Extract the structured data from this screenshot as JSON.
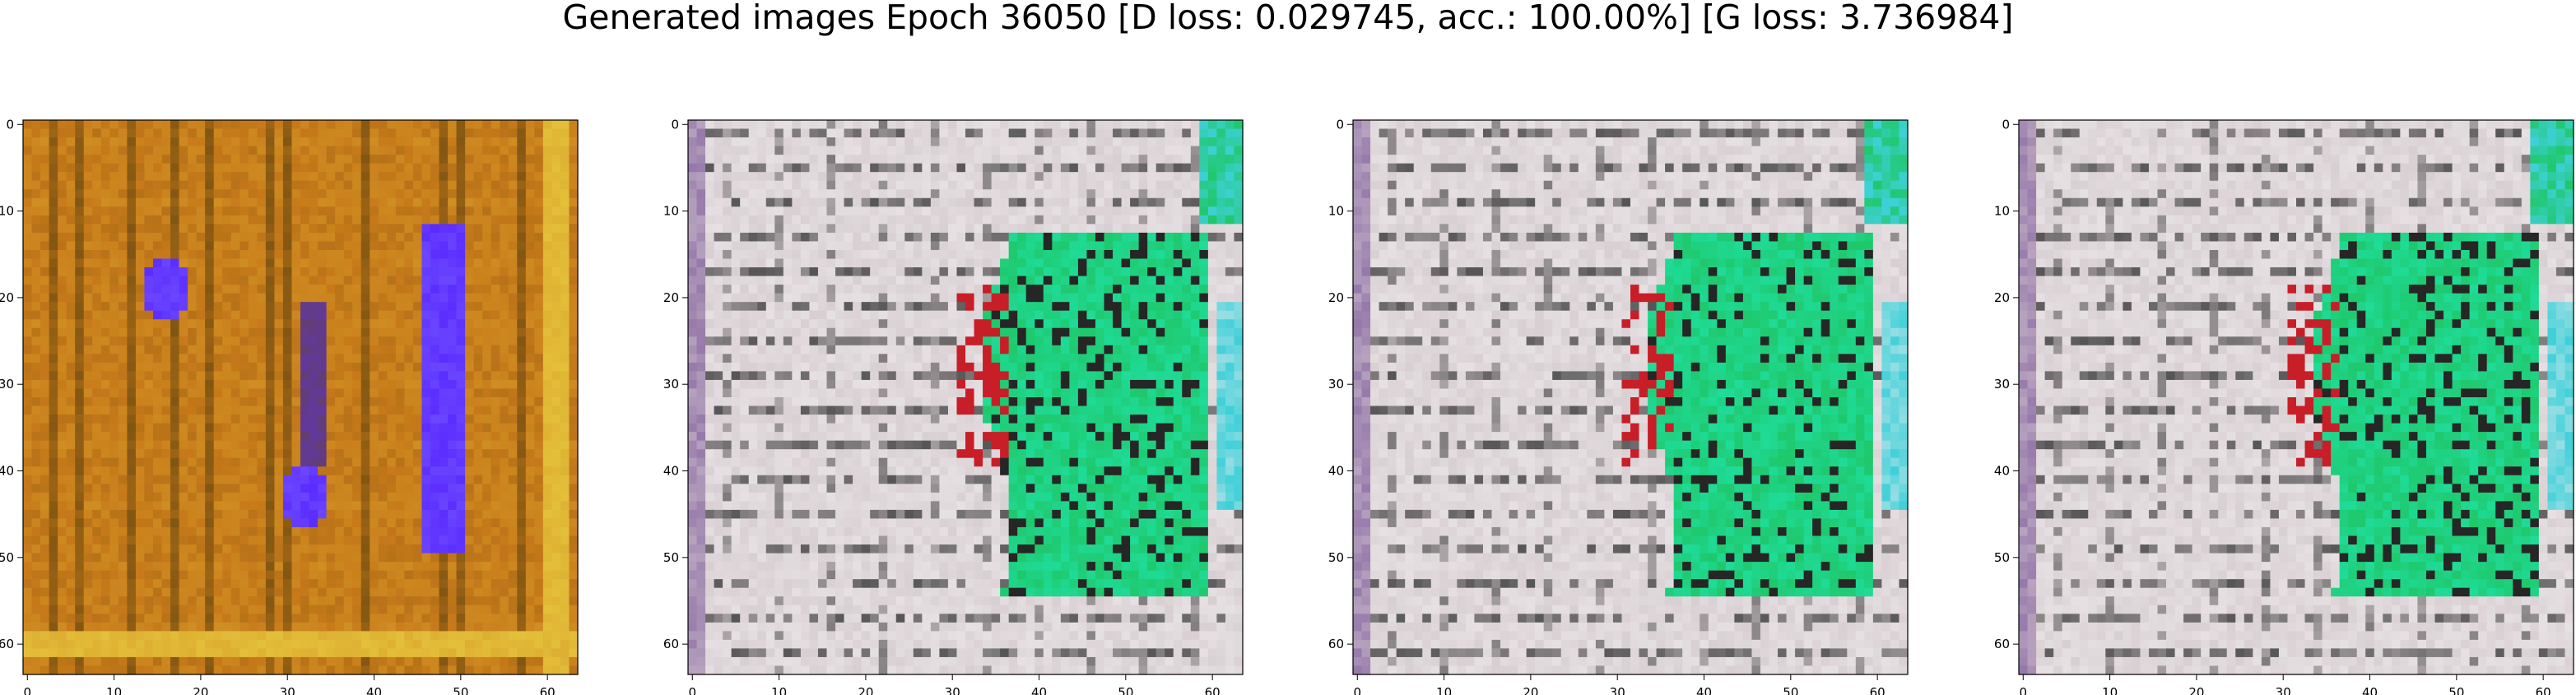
{
  "figure": {
    "title": "Generated images Epoch 36050 [D loss: 0.029745, acc.: 100.00%] [G loss: 3.736984]"
  },
  "axes": {
    "x_ticks": [
      "0",
      "10",
      "20",
      "30",
      "40",
      "50",
      "60"
    ],
    "y_ticks": [
      "0",
      "10",
      "20",
      "30",
      "40",
      "50",
      "60"
    ],
    "x_range": [
      -0.5,
      63.5
    ],
    "y_range": [
      -0.5,
      63.5
    ]
  },
  "panels": [
    {
      "name": "generated-image-1",
      "palette": {
        "base": "#c77a1a",
        "dark": "#6a4a10",
        "light": "#d8a22a",
        "accent": "#5b2cff",
        "edge": "#e4c03a"
      }
    },
    {
      "name": "generated-image-2",
      "palette": {
        "base": "#d8cfd2",
        "dark": "#404040",
        "light": "#f0ecef",
        "accent": "#1fc86b",
        "edge": "#3fd0d8"
      }
    },
    {
      "name": "generated-image-3",
      "palette": {
        "base": "#d8cfd2",
        "dark": "#404040",
        "light": "#f0ecef",
        "accent": "#1fc86b",
        "edge": "#3fd0d8"
      }
    },
    {
      "name": "generated-image-4",
      "palette": {
        "base": "#d8cfd2",
        "dark": "#404040",
        "light": "#f0ecef",
        "accent": "#1fc86b",
        "edge": "#3fd0d8"
      }
    }
  ]
}
